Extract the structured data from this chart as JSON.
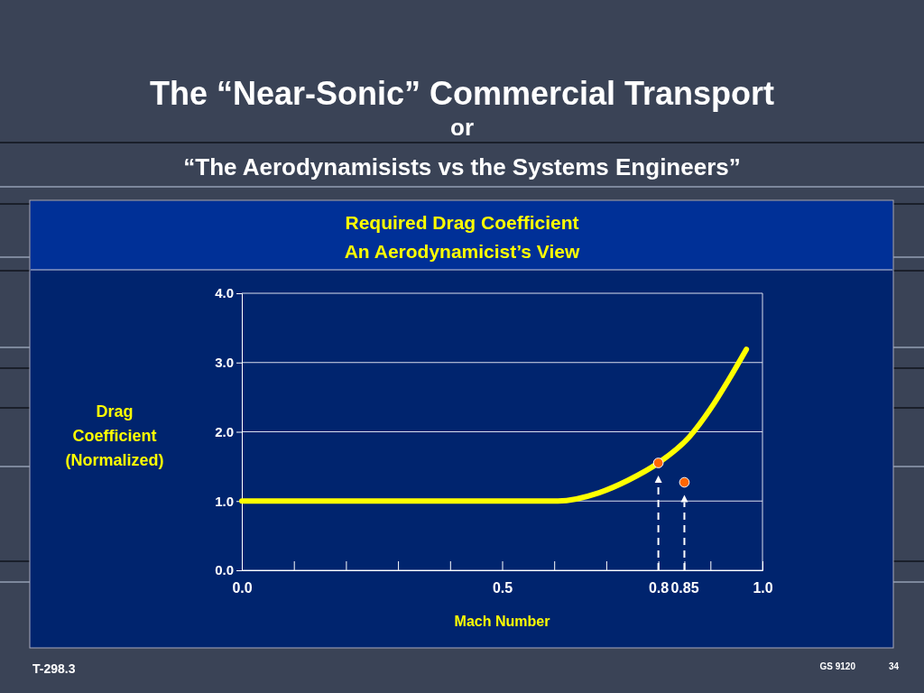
{
  "chart_data": {
    "type": "line",
    "title": "Required Drag Coefficient\nAn Aerodynamicist’s View",
    "xlabel": "Mach Number",
    "ylabel": "Drag\nCoefficient\n(Normalized)",
    "annotations": [
      "The “Near-Sonic” Commercial Transport",
      "or",
      "“The Aerodynamisists vs the Systems Engineers”",
      "T-298.3",
      "GS 9120",
      "34"
    ],
    "series": [
      {
        "color": "#ffff00",
        "marker": "none",
        "x": [
          0,
          0.3,
          0.607,
          0.686,
          0.742,
          0.8,
          0.86,
          0.9,
          0.935,
          0.969
        ],
        "values": [
          1,
          1,
          1,
          1.12,
          1.3,
          1.55,
          1.93,
          2.33,
          2.75,
          3.19
        ]
      },
      {
        "type": "scatter",
        "marker": "circle",
        "color": "#ff6600",
        "x": [
          0.8,
          0.85
        ],
        "values": [
          1.55,
          1.27
        ]
      }
    ],
    "xlim": [
      0,
      1
    ],
    "ylim": [
      0,
      4
    ],
    "xticks": [
      {
        "value": 0,
        "label": "0.0"
      },
      {
        "value": 0.1,
        "label": null
      },
      {
        "value": 0.2,
        "label": null
      },
      {
        "value": 0.3,
        "label": null
      },
      {
        "value": 0.4,
        "label": null
      },
      {
        "value": 0.5,
        "label": "0.5"
      },
      {
        "value": 0.6,
        "label": null
      },
      {
        "value": 0.7,
        "label": null
      },
      0.8,
      0.85,
      {
        "value": 0.9,
        "label": null
      },
      {
        "value": 1,
        "label": "1.0"
      }
    ],
    "yticks": [
      {
        "value": 0,
        "label": "0.0"
      },
      {
        "value": 1,
        "label": "1.0"
      },
      {
        "value": 2,
        "label": "2.0"
      },
      {
        "value": 3,
        "label": "3.0"
      },
      {
        "value": 4,
        "label": "4.0"
      }
    ],
    "grid": "y",
    "line_style": "solid"
  }
}
